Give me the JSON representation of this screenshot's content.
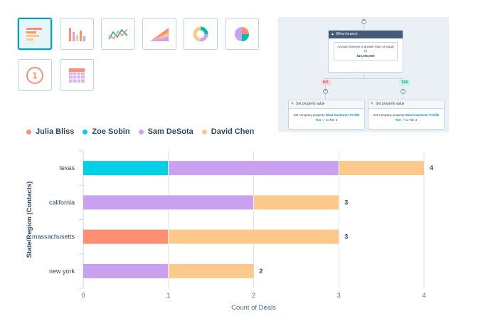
{
  "chart_types": [
    {
      "name": "horizontal-bar",
      "selected": true
    },
    {
      "name": "vertical-bar",
      "selected": false
    },
    {
      "name": "line",
      "selected": false
    },
    {
      "name": "area",
      "selected": false
    },
    {
      "name": "donut",
      "selected": false
    },
    {
      "name": "pie",
      "selected": false
    },
    {
      "name": "single-value",
      "selected": false,
      "label": "1"
    },
    {
      "name": "table",
      "selected": false
    }
  ],
  "workflow": {
    "branch_title": "If/then branch",
    "condition_text": "Annual revenue is greater than or equal to",
    "condition_value": "$10,000,000",
    "no_label": "NO",
    "yes_label": "YES",
    "left_action": {
      "header": "Set property value",
      "line1_prefix": "Set company property",
      "property": "Ideal Customer Profile",
      "line2_link": "Tier",
      "line2_suffix": "to Tier 3"
    },
    "right_action": {
      "header": "Set property value",
      "line1_prefix": "Set company property",
      "property": "Ideal Customer Profile",
      "line2_link": "Tier",
      "line2_suffix": "to Tier 2"
    },
    "colors": {
      "header": "#425b76",
      "no": "#f2545b",
      "yes": "#00bda5"
    }
  },
  "chart_data": {
    "type": "bar",
    "orientation": "horizontal",
    "stacked": true,
    "categories": [
      "texas",
      "california",
      "massachusetts",
      "new york"
    ],
    "series": [
      {
        "name": "Julia Bliss",
        "color": "#ff8f73",
        "values": [
          0,
          0,
          1,
          0
        ]
      },
      {
        "name": "Zoe Sobin",
        "color": "#00d0e4",
        "values": [
          1,
          0,
          0,
          0
        ]
      },
      {
        "name": "Sam DeSota",
        "color": "#c8a2f0",
        "values": [
          2,
          2,
          0,
          1
        ]
      },
      {
        "name": "David Chen",
        "color": "#fdc98a",
        "values": [
          1,
          1,
          2,
          1
        ]
      }
    ],
    "totals": [
      4,
      3,
      3,
      2
    ],
    "xlabel": "Count of Deals",
    "ylabel": "State/Region (Contacts)",
    "xlim": [
      0,
      4
    ],
    "xticks": [
      0,
      1,
      2,
      3,
      4
    ],
    "grid": true,
    "legend_position": "top-left"
  }
}
